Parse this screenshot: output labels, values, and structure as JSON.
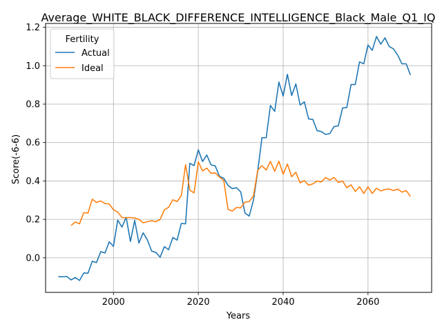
{
  "chart_data": {
    "type": "line",
    "title": "Average_WHITE_BLACK_DIFFERENCE_INTELLIGENCE_Black_Male_Q1_IQ",
    "xlabel": "Years",
    "ylabel": "Score(-6-6)",
    "xlim": [
      1984,
      2075
    ],
    "ylim": [
      -0.18,
      1.22
    ],
    "xticks": [
      2000,
      2020,
      2040,
      2060
    ],
    "yticks": [
      0.0,
      0.2,
      0.4,
      0.6,
      0.8,
      1.0,
      1.2
    ],
    "xtick_labels": [
      "2000",
      "2020",
      "2040",
      "2060"
    ],
    "ytick_labels": [
      "0.0",
      "0.2",
      "0.4",
      "0.6",
      "0.8",
      "1.0",
      "1.2"
    ],
    "grid": true,
    "legend": {
      "title": "Fertility",
      "position": "upper-left"
    },
    "series": [
      {
        "name": "Actual",
        "color": "#1f77b4",
        "x": [
          1987,
          1988,
          1989,
          1990,
          1991,
          1992,
          1993,
          1994,
          1995,
          1996,
          1997,
          1998,
          1999,
          2000,
          2001,
          2002,
          2003,
          2004,
          2005,
          2006,
          2007,
          2008,
          2009,
          2010,
          2011,
          2012,
          2013,
          2014,
          2015,
          2016,
          2017,
          2018,
          2019,
          2020,
          2021,
          2022,
          2023,
          2024,
          2025,
          2026,
          2027,
          2028,
          2029,
          2030,
          2031,
          2032,
          2033,
          2034,
          2035,
          2036,
          2037,
          2038,
          2039,
          2040,
          2041,
          2042,
          2043,
          2044,
          2045,
          2046,
          2047,
          2048,
          2049,
          2050,
          2051,
          2052,
          2053,
          2054,
          2055,
          2056,
          2057,
          2058,
          2059,
          2060,
          2061,
          2062,
          2063,
          2064,
          2065,
          2066,
          2067,
          2068,
          2069,
          2070
        ],
        "values": [
          -0.098,
          -0.099,
          -0.097,
          -0.115,
          -0.103,
          -0.118,
          -0.079,
          -0.08,
          -0.018,
          -0.025,
          0.032,
          0.025,
          0.083,
          0.06,
          0.196,
          0.16,
          0.211,
          0.085,
          0.195,
          0.077,
          0.13,
          0.093,
          0.035,
          0.028,
          0.003,
          0.058,
          0.042,
          0.106,
          0.092,
          0.179,
          0.177,
          0.492,
          0.48,
          0.562,
          0.501,
          0.535,
          0.484,
          0.478,
          0.424,
          0.414,
          0.377,
          0.36,
          0.365,
          0.343,
          0.233,
          0.217,
          0.3,
          0.45,
          0.625,
          0.625,
          0.793,
          0.762,
          0.915,
          0.842,
          0.955,
          0.845,
          0.905,
          0.795,
          0.812,
          0.723,
          0.72,
          0.662,
          0.657,
          0.642,
          0.647,
          0.683,
          0.687,
          0.78,
          0.782,
          0.902,
          0.902,
          1.02,
          1.01,
          1.108,
          1.08,
          1.152,
          1.112,
          1.145,
          1.1,
          1.088,
          1.055,
          1.01,
          1.01,
          0.952
        ]
      },
      {
        "name": "Ideal",
        "color": "#ff7f0e",
        "x": [
          1990,
          1991,
          1992,
          1993,
          1994,
          1995,
          1996,
          1997,
          1998,
          1999,
          2000,
          2001,
          2002,
          2003,
          2004,
          2005,
          2006,
          2007,
          2008,
          2009,
          2010,
          2011,
          2012,
          2013,
          2014,
          2015,
          2016,
          2017,
          2018,
          2019,
          2020,
          2021,
          2022,
          2023,
          2024,
          2025,
          2026,
          2027,
          2028,
          2029,
          2030,
          2031,
          2032,
          2033,
          2034,
          2035,
          2036,
          2037,
          2038,
          2039,
          2040,
          2041,
          2042,
          2043,
          2044,
          2045,
          2046,
          2047,
          2048,
          2049,
          2050,
          2051,
          2052,
          2053,
          2054,
          2055,
          2056,
          2057,
          2058,
          2059,
          2060,
          2061,
          2062,
          2063,
          2064,
          2065,
          2066,
          2067,
          2068,
          2069,
          2070
        ],
        "values": [
          0.168,
          0.186,
          0.177,
          0.235,
          0.233,
          0.305,
          0.288,
          0.296,
          0.283,
          0.28,
          0.25,
          0.238,
          0.21,
          0.208,
          0.21,
          0.207,
          0.2,
          0.182,
          0.188,
          0.193,
          0.188,
          0.2,
          0.25,
          0.263,
          0.302,
          0.293,
          0.324,
          0.485,
          0.352,
          0.338,
          0.5,
          0.452,
          0.467,
          0.44,
          0.442,
          0.42,
          0.403,
          0.252,
          0.243,
          0.262,
          0.26,
          0.29,
          0.293,
          0.322,
          0.455,
          0.48,
          0.457,
          0.502,
          0.45,
          0.503,
          0.435,
          0.488,
          0.422,
          0.445,
          0.39,
          0.402,
          0.378,
          0.385,
          0.4,
          0.395,
          0.418,
          0.405,
          0.418,
          0.392,
          0.4,
          0.365,
          0.38,
          0.345,
          0.37,
          0.335,
          0.37,
          0.335,
          0.362,
          0.348,
          0.356,
          0.358,
          0.35,
          0.358,
          0.342,
          0.35,
          0.32
        ]
      }
    ]
  }
}
